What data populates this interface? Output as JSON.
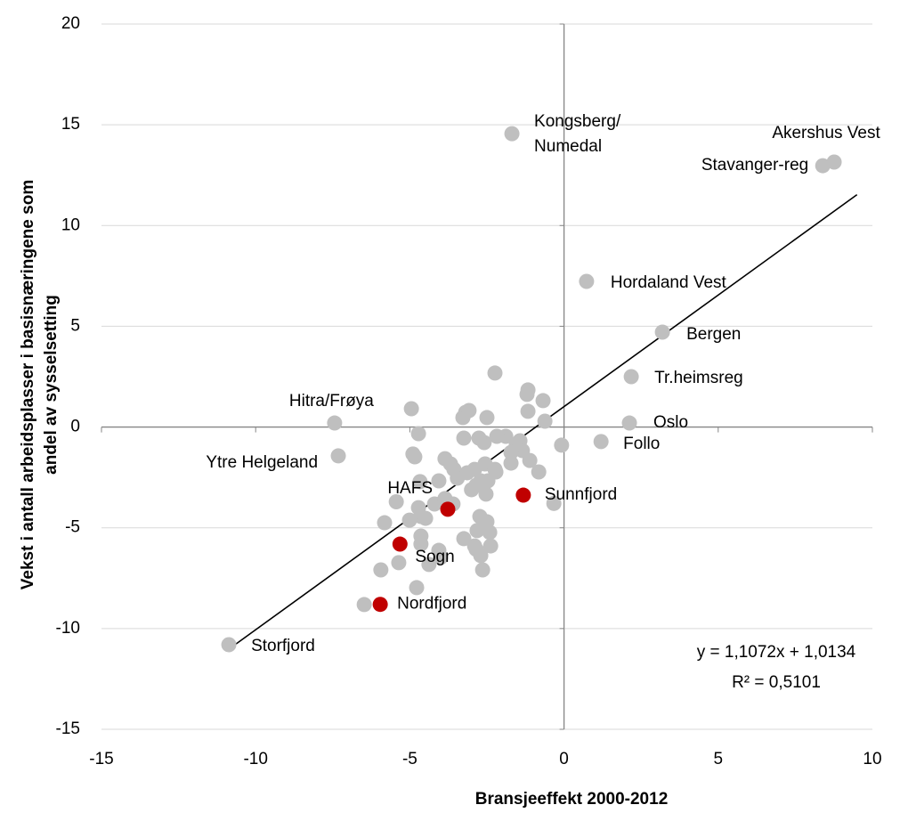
{
  "chart_data": {
    "type": "scatter",
    "x_label": "Bransjeeffekt 2000-2012",
    "y_label": [
      "Vekst i antall arbeidsplasser i basisnæringene som",
      "andel av sysselsetting"
    ],
    "xlim": [
      -15,
      10
    ],
    "xticks": [
      -15,
      -10,
      -5,
      0,
      5,
      10
    ],
    "ylim": [
      -15,
      20
    ],
    "yticks": [
      -15,
      -10,
      -5,
      0,
      5,
      10,
      15,
      20
    ],
    "grid": true,
    "series": [
      {
        "color": "#bfbfbf",
        "x": [
          -1.69,
          8.76,
          8.39,
          0.73,
          3.19,
          2.18,
          2.12,
          1.2,
          -7.44,
          -7.32,
          -10.87,
          -2.24,
          -4.95,
          -3.19,
          -3.28,
          -3.08,
          -2.5,
          -1.17,
          -1.2,
          -1.17,
          -1.89,
          -1.43,
          -3.25,
          -2.18,
          -2.59,
          -2.76,
          -4.72,
          -4.84,
          -4.9,
          -4.67,
          -3.86,
          -3.68,
          -3.57,
          -3.46,
          -4.06,
          -3.14,
          -2.9,
          -2.56,
          -2.24,
          -2.21,
          -2.7,
          -2.47,
          -1.72,
          -1.55,
          -1.35,
          -1.11,
          -0.82,
          -0.68,
          -0.62,
          -0.08,
          -0.33,
          -4.72,
          -5.44,
          -5.82,
          -4.64,
          -4.49,
          -5.01,
          -4.64,
          -4.64,
          -4.06,
          -4.0,
          -4.38,
          -5.36,
          -5.94,
          -4.78,
          -6.48,
          -3.25,
          -2.82,
          -2.5,
          -2.41,
          -2.73,
          -2.85,
          -2.7,
          -2.64,
          -2.38,
          -2.9,
          -4.2,
          -3.86,
          -3.6,
          -3.0,
          -2.85,
          -2.53,
          -1.72
        ],
        "values": [
          14.56,
          13.15,
          12.97,
          7.23,
          4.71,
          2.5,
          0.2,
          -0.72,
          0.2,
          -1.43,
          -10.8,
          2.68,
          0.91,
          0.73,
          0.47,
          0.82,
          0.47,
          1.84,
          1.62,
          0.78,
          -0.46,
          -0.68,
          -0.55,
          -0.46,
          -0.77,
          -0.55,
          -0.33,
          -1.48,
          -1.34,
          -2.71,
          -1.57,
          -1.83,
          -2.1,
          -2.54,
          -2.67,
          -2.27,
          -2.1,
          -1.83,
          -2.1,
          -2.23,
          -2.67,
          -2.67,
          -1.79,
          -0.9,
          -1.17,
          -1.66,
          -2.23,
          1.31,
          0.29,
          -0.9,
          -3.79,
          -4.0,
          -3.71,
          -4.75,
          -4.44,
          -4.53,
          -4.62,
          -5.41,
          -5.81,
          -6.12,
          -6.47,
          -6.82,
          -6.73,
          -7.09,
          -7.97,
          -8.81,
          -5.54,
          -5.14,
          -4.7,
          -5.23,
          -4.44,
          -6.07,
          -6.38,
          -7.09,
          -5.9,
          -5.9,
          -3.82,
          -3.55,
          -3.82,
          -3.11,
          -2.89,
          -3.33,
          -1.26
        ],
        "labels": [
          "Kongsberg/\nNumedal",
          "Akershus Vest",
          "Stavanger-reg",
          "Hordaland Vest",
          "Bergen",
          "Tr.heimsreg",
          "Oslo",
          "Follo",
          "Hitra/Frøya",
          "Ytre Helgeland",
          "Storfjord",
          null,
          null,
          null,
          null,
          null,
          null,
          null,
          null,
          null,
          null,
          null,
          null,
          null,
          null,
          null,
          null,
          null,
          null,
          null,
          null,
          null,
          null,
          null,
          null,
          null,
          null,
          null,
          null,
          null,
          null,
          null,
          null,
          null,
          null,
          null,
          null,
          null,
          null,
          null,
          null,
          null,
          null,
          null,
          null,
          null,
          null,
          null,
          null,
          null,
          null,
          null,
          null,
          null,
          null,
          null,
          null,
          null,
          null,
          null,
          null,
          null,
          null,
          null,
          null,
          null,
          null,
          null,
          null,
          null,
          null,
          null,
          null
        ]
      },
      {
        "color": "#c00000",
        "x": [
          -3.77,
          -1.32,
          -5.32,
          -5.96
        ],
        "values": [
          -4.08,
          -3.38,
          -5.81,
          -8.8
        ],
        "labels": [
          "HAFS",
          "Sunnfjord",
          "Sogn",
          "Nordfjord"
        ]
      }
    ],
    "trendline": {
      "slope": 1.1072,
      "intercept": 1.0134,
      "x": [
        -10.9,
        9.5
      ],
      "color": "#000000"
    },
    "annotations": [
      "y = 1,1072x + 1,0134",
      "R² = 0,5101"
    ]
  }
}
